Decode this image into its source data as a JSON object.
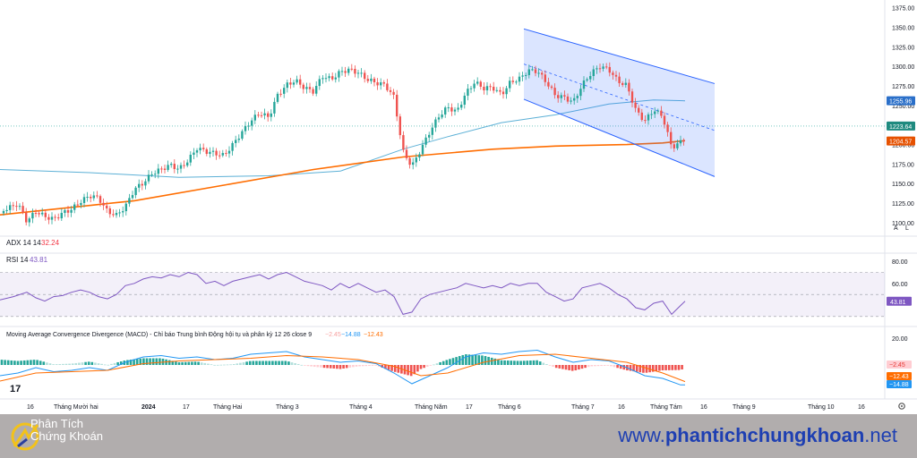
{
  "indicators": {
    "adx_label": "ADX 14 14",
    "adx_value": "32.24",
    "rsi_label": "RSI 14",
    "rsi_value": "43.81",
    "macd_label": "Moving Average Convergence Divergence (MACD) - Chỉ báo Trung bình Động hội tụ và phân kỳ 12 26 close 9",
    "macd_hist": "−2.45",
    "macd_line": "−14.88",
    "macd_signal": "−12.43"
  },
  "price_axis": {
    "ticks": [
      "1375.00",
      "1350.00",
      "1325.00",
      "1300.00",
      "1275.00",
      "1250.00",
      "1225.00",
      "1200.00",
      "1175.00",
      "1150.00",
      "1125.00",
      "1100.00"
    ],
    "ma_fast_tag": "1255.96",
    "last_price_tag": "1223.64",
    "ma_slow_tag": "1204.57",
    "btn_auto": "A",
    "btn_log": "L"
  },
  "rsi_axis": {
    "ticks": [
      "80.00",
      "60.00"
    ],
    "tag": "43.81"
  },
  "macd_axis": {
    "ticks": [
      "20.00"
    ],
    "tags": [
      "−2.45",
      "−12.43",
      "−14.88"
    ]
  },
  "time_axis": [
    "16",
    "Tháng Mười hai",
    "2024",
    "17",
    "Tháng Hai",
    "Tháng 3",
    "Tháng 4",
    "Tháng Năm",
    "17",
    "Tháng 6",
    "Tháng 7",
    "16",
    "Tháng Tám",
    "16",
    "Tháng 9",
    "Tháng 10",
    "16"
  ],
  "watermark": "17",
  "colors": {
    "up": "#26a69a",
    "down": "#ef5350",
    "ma_fast": "#5cb0d6",
    "ma_slow": "#ff6d00",
    "channel": "#2962ff",
    "rsi": "#7e57c2",
    "macd": "#2196f3",
    "signal": "#ff6d00"
  },
  "chart_data": [
    {
      "type": "candlestick",
      "ylim": [
        1085,
        1385
      ],
      "price_ticks": [
        1100,
        1125,
        1150,
        1175,
        1200,
        1225,
        1250,
        1275,
        1300,
        1325,
        1350,
        1375
      ],
      "close_path": [
        [
          0,
          1112
        ],
        [
          10,
          1118
        ],
        [
          20,
          1125
        ],
        [
          30,
          1104
        ],
        [
          40,
          1118
        ],
        [
          50,
          1112
        ],
        [
          60,
          1108
        ],
        [
          70,
          1115
        ],
        [
          80,
          1118
        ],
        [
          90,
          1126
        ],
        [
          100,
          1132
        ],
        [
          110,
          1128
        ],
        [
          120,
          1110
        ],
        [
          130,
          1106
        ],
        [
          140,
          1118
        ],
        [
          150,
          1142
        ],
        [
          160,
          1152
        ],
        [
          170,
          1166
        ],
        [
          180,
          1172
        ],
        [
          190,
          1178
        ],
        [
          200,
          1172
        ],
        [
          210,
          1182
        ],
        [
          220,
          1196
        ],
        [
          230,
          1190
        ],
        [
          240,
          1186
        ],
        [
          250,
          1182
        ],
        [
          260,
          1196
        ],
        [
          270,
          1212
        ],
        [
          280,
          1228
        ],
        [
          290,
          1240
        ],
        [
          300,
          1236
        ],
        [
          310,
          1266
        ],
        [
          320,
          1280
        ],
        [
          330,
          1286
        ],
        [
          340,
          1276
        ],
        [
          350,
          1270
        ],
        [
          360,
          1288
        ],
        [
          370,
          1282
        ],
        [
          380,
          1290
        ],
        [
          390,
          1292
        ],
        [
          400,
          1288
        ],
        [
          410,
          1280
        ],
        [
          420,
          1277
        ],
        [
          430,
          1276
        ],
        [
          440,
          1262
        ],
        [
          450,
          1194
        ],
        [
          460,
          1176
        ],
        [
          470,
          1198
        ],
        [
          480,
          1220
        ],
        [
          490,
          1238
        ],
        [
          500,
          1248
        ],
        [
          510,
          1240
        ],
        [
          520,
          1262
        ],
        [
          530,
          1276
        ],
        [
          540,
          1268
        ],
        [
          550,
          1270
        ],
        [
          560,
          1262
        ],
        [
          570,
          1280
        ],
        [
          580,
          1286
        ],
        [
          590,
          1298
        ],
        [
          600,
          1298
        ],
        [
          610,
          1284
        ],
        [
          620,
          1266
        ],
        [
          630,
          1262
        ],
        [
          640,
          1254
        ],
        [
          650,
          1274
        ],
        [
          660,
          1288
        ],
        [
          670,
          1296
        ],
        [
          680,
          1292
        ],
        [
          690,
          1278
        ],
        [
          700,
          1274
        ],
        [
          710,
          1244
        ],
        [
          720,
          1232
        ],
        [
          730,
          1248
        ],
        [
          740,
          1240
        ],
        [
          750,
          1200
        ],
        [
          760,
          1206
        ],
        [
          765,
          1210
        ]
      ],
      "moving_average_fast": [
        [
          0,
          1168
        ],
        [
          100,
          1164
        ],
        [
          200,
          1158
        ],
        [
          300,
          1160
        ],
        [
          380,
          1166
        ],
        [
          450,
          1194
        ],
        [
          500,
          1210
        ],
        [
          560,
          1228
        ],
        [
          620,
          1238
        ],
        [
          680,
          1252
        ],
        [
          730,
          1257
        ],
        [
          765,
          1256
        ]
      ],
      "moving_average_slow": [
        [
          0,
          1110
        ],
        [
          100,
          1122
        ],
        [
          150,
          1128
        ],
        [
          250,
          1148
        ],
        [
          350,
          1168
        ],
        [
          450,
          1184
        ],
        [
          550,
          1194
        ],
        [
          620,
          1198
        ],
        [
          700,
          1200
        ],
        [
          740,
          1202
        ],
        [
          765,
          1205
        ]
      ],
      "channel": {
        "upper": [
          [
            585,
            1348
          ],
          [
            798,
            1278
          ]
        ],
        "lower": [
          [
            585,
            1258
          ],
          [
            798,
            1159
          ]
        ],
        "mid": [
          [
            585,
            1303
          ],
          [
            798,
            1218
          ]
        ]
      },
      "last_price": 1223.64
    },
    {
      "type": "line",
      "name": "RSI 14",
      "ylim": [
        25,
        85
      ],
      "bands": [
        70,
        50,
        30
      ],
      "ticks": [
        80,
        60
      ],
      "points": [
        [
          0,
          45
        ],
        [
          15,
          48
        ],
        [
          30,
          52
        ],
        [
          40,
          47
        ],
        [
          50,
          44
        ],
        [
          60,
          48
        ],
        [
          70,
          49
        ],
        [
          80,
          52
        ],
        [
          90,
          54
        ],
        [
          100,
          52
        ],
        [
          110,
          48
        ],
        [
          120,
          46
        ],
        [
          130,
          50
        ],
        [
          140,
          58
        ],
        [
          150,
          60
        ],
        [
          160,
          64
        ],
        [
          170,
          66
        ],
        [
          180,
          65
        ],
        [
          190,
          68
        ],
        [
          200,
          66
        ],
        [
          210,
          70
        ],
        [
          220,
          68
        ],
        [
          230,
          60
        ],
        [
          240,
          62
        ],
        [
          250,
          58
        ],
        [
          260,
          62
        ],
        [
          270,
          64
        ],
        [
          280,
          66
        ],
        [
          290,
          68
        ],
        [
          300,
          64
        ],
        [
          310,
          68
        ],
        [
          320,
          70
        ],
        [
          330,
          66
        ],
        [
          340,
          62
        ],
        [
          350,
          60
        ],
        [
          360,
          58
        ],
        [
          370,
          54
        ],
        [
          380,
          60
        ],
        [
          390,
          56
        ],
        [
          400,
          60
        ],
        [
          410,
          56
        ],
        [
          420,
          52
        ],
        [
          430,
          54
        ],
        [
          440,
          48
        ],
        [
          450,
          32
        ],
        [
          460,
          34
        ],
        [
          470,
          46
        ],
        [
          480,
          50
        ],
        [
          490,
          52
        ],
        [
          500,
          54
        ],
        [
          510,
          56
        ],
        [
          520,
          60
        ],
        [
          530,
          58
        ],
        [
          540,
          56
        ],
        [
          550,
          58
        ],
        [
          560,
          56
        ],
        [
          570,
          60
        ],
        [
          580,
          58
        ],
        [
          590,
          60
        ],
        [
          600,
          60
        ],
        [
          610,
          52
        ],
        [
          620,
          48
        ],
        [
          630,
          44
        ],
        [
          640,
          46
        ],
        [
          650,
          56
        ],
        [
          660,
          58
        ],
        [
          670,
          60
        ],
        [
          680,
          56
        ],
        [
          690,
          50
        ],
        [
          700,
          46
        ],
        [
          710,
          38
        ],
        [
          720,
          36
        ],
        [
          730,
          42
        ],
        [
          740,
          44
        ],
        [
          750,
          32
        ],
        [
          760,
          40
        ],
        [
          765,
          43.81
        ]
      ]
    },
    {
      "type": "macd",
      "name": "MACD 12 26 close 9",
      "ylim": [
        -24,
        24
      ],
      "ticks": [
        20
      ],
      "macd": [
        [
          0,
          -8
        ],
        [
          20,
          -6
        ],
        [
          40,
          -2
        ],
        [
          60,
          -5
        ],
        [
          80,
          -4
        ],
        [
          100,
          -2
        ],
        [
          120,
          -4
        ],
        [
          140,
          2
        ],
        [
          160,
          6
        ],
        [
          180,
          7
        ],
        [
          200,
          5
        ],
        [
          220,
          6
        ],
        [
          240,
          4
        ],
        [
          260,
          5
        ],
        [
          280,
          8
        ],
        [
          300,
          9
        ],
        [
          320,
          10
        ],
        [
          340,
          6
        ],
        [
          360,
          4
        ],
        [
          380,
          2
        ],
        [
          400,
          3
        ],
        [
          420,
          1
        ],
        [
          440,
          -6
        ],
        [
          460,
          -14
        ],
        [
          480,
          -8
        ],
        [
          500,
          -2
        ],
        [
          520,
          6
        ],
        [
          540,
          9
        ],
        [
          560,
          8
        ],
        [
          580,
          10
        ],
        [
          600,
          11
        ],
        [
          620,
          6
        ],
        [
          640,
          2
        ],
        [
          660,
          4
        ],
        [
          680,
          3
        ],
        [
          700,
          -2
        ],
        [
          720,
          -8
        ],
        [
          740,
          -10
        ],
        [
          760,
          -14.88
        ],
        [
          765,
          -14.88
        ]
      ],
      "signal": [
        [
          0,
          -12
        ],
        [
          40,
          -6
        ],
        [
          80,
          -5
        ],
        [
          120,
          -4
        ],
        [
          160,
          1
        ],
        [
          200,
          3
        ],
        [
          240,
          4
        ],
        [
          280,
          5
        ],
        [
          320,
          7
        ],
        [
          360,
          6
        ],
        [
          400,
          4
        ],
        [
          440,
          -1
        ],
        [
          470,
          -8
        ],
        [
          500,
          -6
        ],
        [
          540,
          2
        ],
        [
          580,
          7
        ],
        [
          620,
          8
        ],
        [
          660,
          5
        ],
        [
          700,
          2
        ],
        [
          740,
          -6
        ],
        [
          765,
          -12.43
        ]
      ],
      "histogram_last": -2.45
    }
  ]
}
